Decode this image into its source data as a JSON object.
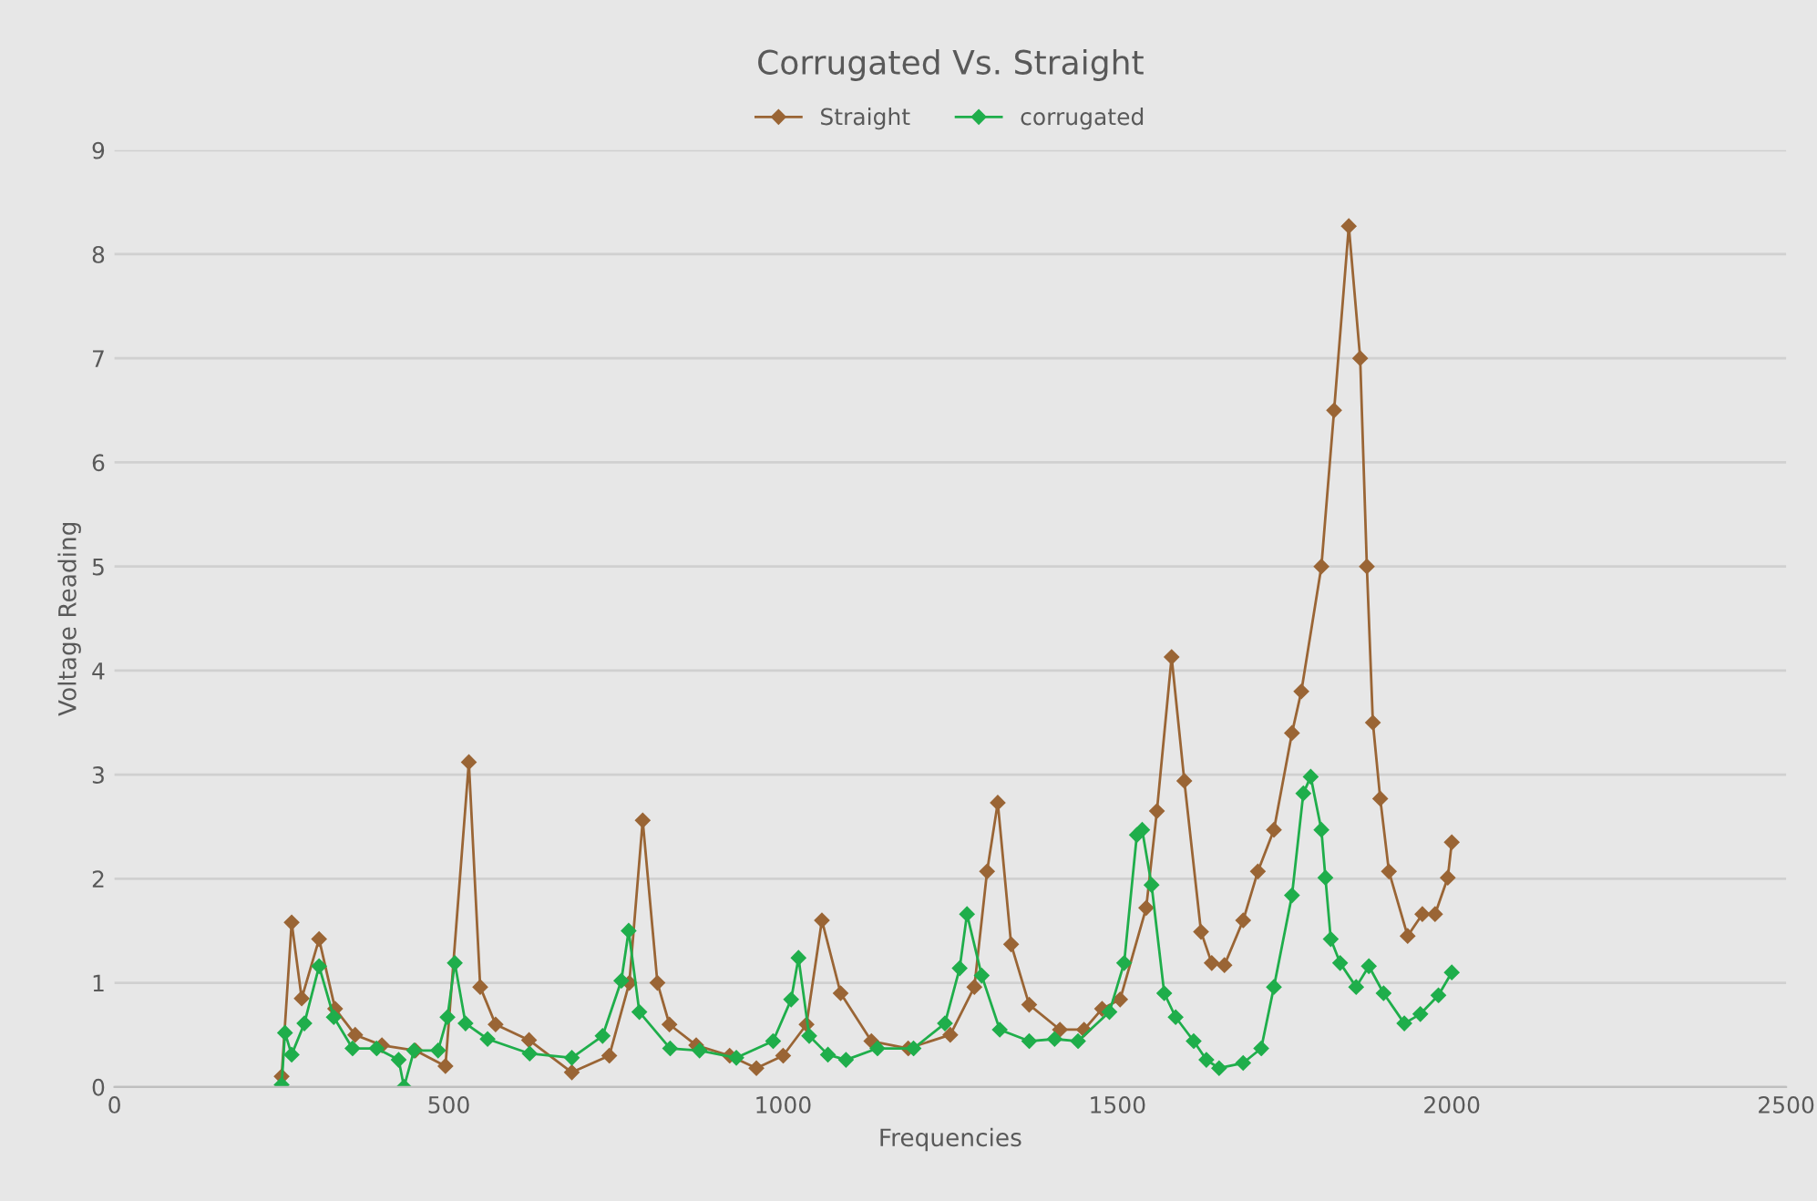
{
  "chart_data": {
    "type": "line",
    "title": "Corrugated Vs. Straight",
    "xlabel": "Frequencies",
    "ylabel": "Voltage Reading",
    "xlim": [
      0,
      2500
    ],
    "xticks": [
      0,
      500,
      1000,
      1500,
      2000,
      2500
    ],
    "ylim": [
      0,
      9
    ],
    "yticks": [
      0,
      1,
      2,
      3,
      4,
      5,
      6,
      7,
      8,
      9
    ],
    "grid": "y",
    "legend": "top",
    "marker": "diamond",
    "line_style": "solid",
    "series": [
      {
        "name": "Straight",
        "color": "#9a6535",
        "x": [
          250,
          265,
          280,
          306,
          330,
          360,
          400,
          450,
          495,
          530,
          547,
          570,
          620,
          684,
          740,
          770,
          790,
          812,
          830,
          870,
          920,
          960,
          1000,
          1035,
          1058,
          1086,
          1132,
          1187,
          1250,
          1286,
          1305,
          1321,
          1341,
          1368,
          1414,
          1450,
          1477,
          1504,
          1543,
          1559,
          1581,
          1600,
          1625,
          1641,
          1660,
          1688,
          1710,
          1734,
          1761,
          1775,
          1805,
          1824,
          1846,
          1863,
          1873,
          1882,
          1893,
          1906,
          1934,
          1956,
          1975,
          1994,
          2000
        ],
        "values": [
          0.1,
          1.58,
          0.85,
          1.42,
          0.75,
          0.5,
          0.4,
          0.35,
          0.2,
          3.12,
          0.96,
          0.6,
          0.45,
          0.14,
          0.3,
          1.0,
          2.56,
          1.0,
          0.6,
          0.4,
          0.3,
          0.18,
          0.3,
          0.6,
          1.6,
          0.9,
          0.44,
          0.37,
          0.5,
          0.96,
          2.07,
          2.73,
          1.37,
          0.79,
          0.55,
          0.55,
          0.75,
          0.84,
          1.72,
          2.65,
          4.13,
          2.94,
          1.49,
          1.19,
          1.17,
          1.6,
          2.07,
          2.47,
          3.4,
          3.8,
          5.0,
          6.5,
          8.27,
          7.0,
          5.0,
          3.5,
          2.77,
          2.07,
          1.45,
          1.66,
          1.66,
          2.01,
          2.35
        ]
      },
      {
        "name": "corrugated",
        "color": "#1fae4b",
        "x": [
          250,
          255,
          265,
          284,
          306,
          328,
          356,
          392,
          425,
          433,
          448,
          484,
          498,
          509,
          525,
          558,
          621,
          684,
          730,
          758,
          769,
          785,
          831,
          875,
          930,
          985,
          1012,
          1023,
          1039,
          1067,
          1094,
          1141,
          1195,
          1242,
          1264,
          1275,
          1297,
          1324,
          1368,
          1406,
          1441,
          1488,
          1510,
          1529,
          1537,
          1551,
          1570,
          1587,
          1614,
          1633,
          1652,
          1688,
          1715,
          1734,
          1761,
          1778,
          1789,
          1805,
          1811,
          1819,
          1833,
          1857,
          1876,
          1898,
          1929,
          1953,
          1980,
          2000
        ],
        "values": [
          0.02,
          0.52,
          0.31,
          0.61,
          1.16,
          0.67,
          0.37,
          0.37,
          0.26,
          0.0,
          0.35,
          0.35,
          0.67,
          1.19,
          0.61,
          0.46,
          0.32,
          0.28,
          0.49,
          1.02,
          1.5,
          0.72,
          0.37,
          0.35,
          0.28,
          0.44,
          0.84,
          1.24,
          0.49,
          0.31,
          0.26,
          0.37,
          0.37,
          0.61,
          1.14,
          1.66,
          1.07,
          0.55,
          0.44,
          0.46,
          0.44,
          0.72,
          1.19,
          2.42,
          2.47,
          1.94,
          0.9,
          0.67,
          0.44,
          0.26,
          0.18,
          0.23,
          0.37,
          0.96,
          1.84,
          2.82,
          2.98,
          2.47,
          2.01,
          1.42,
          1.19,
          0.96,
          1.16,
          0.9,
          0.61,
          0.7,
          0.88,
          1.1
        ]
      }
    ]
  }
}
